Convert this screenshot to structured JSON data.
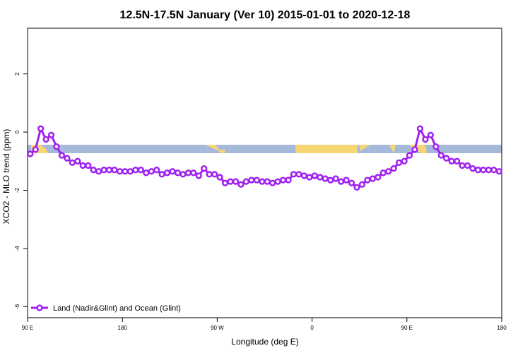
{
  "chart_data": {
    "type": "line",
    "title": "12.5N-17.5N January (Ver 10)   2015-01-01 to 2020-12-18",
    "xlabel": "Longitude (deg E)",
    "ylabel": "XCO2 - MLO trend (ppm)",
    "x": [
      92.5,
      97.5,
      102.5,
      107.5,
      112.5,
      117.5,
      122.5,
      127.5,
      132.5,
      137.5,
      142.5,
      147.5,
      152.5,
      157.5,
      162.5,
      167.5,
      172.5,
      177.5,
      182.5,
      187.5,
      192.5,
      197.5,
      202.5,
      207.5,
      212.5,
      217.5,
      222.5,
      227.5,
      232.5,
      237.5,
      242.5,
      247.5,
      252.5,
      257.5,
      262.5,
      267.5,
      272.5,
      277.5,
      282.5,
      287.5,
      292.5,
      297.5,
      302.5,
      307.5,
      312.5,
      317.5,
      322.5,
      327.5,
      332.5,
      337.5,
      342.5,
      347.5,
      352.5,
      357.5,
      362.5,
      367.5,
      372.5,
      377.5,
      382.5,
      387.5,
      392.5,
      397.5,
      402.5,
      407.5,
      412.5,
      417.5,
      422.5,
      427.5,
      432.5,
      437.5,
      442.5,
      447.5,
      452.5,
      457.5,
      462.5,
      467.5,
      472.5,
      477.5,
      482.5,
      487.5,
      492.5,
      497.5,
      502.5,
      507.5,
      512.5,
      517.5,
      522.5,
      527.5,
      532.5,
      537.5
    ],
    "series": [
      {
        "name": "Land (Nadir&Glint) and Ocean (Glint)",
        "color": "#a020f0",
        "values": [
          -0.75,
          -0.6,
          0.12,
          -0.25,
          -0.1,
          -0.5,
          -0.8,
          -0.9,
          -1.05,
          -1.0,
          -1.15,
          -1.15,
          -1.3,
          -1.35,
          -1.3,
          -1.3,
          -1.3,
          -1.35,
          -1.35,
          -1.35,
          -1.3,
          -1.3,
          -1.4,
          -1.35,
          -1.3,
          -1.45,
          -1.4,
          -1.35,
          -1.4,
          -1.45,
          -1.4,
          -1.4,
          -1.5,
          -1.25,
          -1.45,
          -1.45,
          -1.55,
          -1.75,
          -1.7,
          -1.7,
          -1.8,
          -1.7,
          -1.65,
          -1.65,
          -1.7,
          -1.7,
          -1.75,
          -1.7,
          -1.65,
          -1.65,
          -1.45,
          -1.45,
          -1.5,
          -1.55,
          -1.5,
          -1.55,
          -1.6,
          -1.65,
          -1.6,
          -1.7,
          -1.65,
          -1.75,
          -1.9,
          -1.8,
          -1.65,
          -1.6,
          -1.55,
          -1.4,
          -1.35,
          -1.25,
          -1.05,
          -1.0,
          -0.8,
          -0.6,
          0.12,
          -0.25,
          -0.1,
          -0.5,
          -0.8,
          -0.9,
          -1.0,
          -1.0,
          -1.15,
          -1.15,
          -1.25,
          -1.3,
          -1.3,
          -1.3,
          -1.3,
          -1.35
        ]
      }
    ],
    "xlim": [
      90,
      540
    ],
    "ylim": [
      -6.38,
      3.57
    ],
    "xticks": [
      {
        "value": 90,
        "label": "90 E"
      },
      180,
      {
        "value": 270,
        "label": "90 W"
      },
      {
        "value": 360,
        "label": "0"
      },
      {
        "value": 450,
        "label": "90 E"
      },
      {
        "value": 540,
        "label": "180"
      }
    ],
    "yticks": [
      -6,
      -4,
      -2,
      0,
      2
    ],
    "legend": "bottom-left"
  }
}
